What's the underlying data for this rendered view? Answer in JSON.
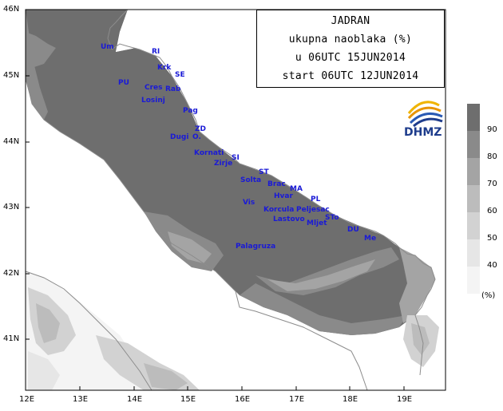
{
  "title": {
    "line1": "JADRAN",
    "line2": "ukupna naoblaka (%)",
    "line3": "u 06UTC 15JUN2014",
    "line4": "start 06UTC 12JUN2014"
  },
  "logo": {
    "text": "DHMZ"
  },
  "axes": {
    "lon_labels": [
      "12E",
      "13E",
      "14E",
      "15E",
      "16E",
      "17E",
      "18E",
      "19E"
    ],
    "lat_labels": [
      "46N",
      "45N",
      "44N",
      "43N",
      "42N",
      "41N"
    ]
  },
  "legend": {
    "levels": [
      "90",
      "80",
      "70",
      "60",
      "50",
      "40"
    ],
    "unit": "(%)",
    "colors": [
      "#6e6e6e",
      "#8a8a8a",
      "#a4a4a4",
      "#bcbcbc",
      "#d2d2d2",
      "#e6e6e6",
      "#f4f4f4"
    ]
  },
  "places": [
    {
      "id": "um",
      "text": "Um"
    },
    {
      "id": "ri",
      "text": "RI"
    },
    {
      "id": "krk",
      "text": "Krk"
    },
    {
      "id": "se",
      "text": "SE"
    },
    {
      "id": "pu",
      "text": "PU"
    },
    {
      "id": "cres",
      "text": "Cres"
    },
    {
      "id": "rab",
      "text": "Rab"
    },
    {
      "id": "losinj",
      "text": "Losinj"
    },
    {
      "id": "pag",
      "text": "Pag"
    },
    {
      "id": "zd",
      "text": "ZD"
    },
    {
      "id": "dugi",
      "text": "Dugi"
    },
    {
      "id": "o",
      "text": "O."
    },
    {
      "id": "kornati",
      "text": "Kornati"
    },
    {
      "id": "si",
      "text": "SI"
    },
    {
      "id": "zirje",
      "text": "Zirje"
    },
    {
      "id": "st",
      "text": "ST"
    },
    {
      "id": "solta",
      "text": "Solta"
    },
    {
      "id": "brac",
      "text": "Brac"
    },
    {
      "id": "ma",
      "text": "MA"
    },
    {
      "id": "hvar",
      "text": "Hvar"
    },
    {
      "id": "pl",
      "text": "PL"
    },
    {
      "id": "vis",
      "text": "Vis"
    },
    {
      "id": "korcula",
      "text": "Korcula"
    },
    {
      "id": "peljesac",
      "text": "Peljesac"
    },
    {
      "id": "lastovo",
      "text": "Lastovo"
    },
    {
      "id": "mljet",
      "text": "Mljet"
    },
    {
      "id": "sto",
      "text": "STo"
    },
    {
      "id": "du",
      "text": "DU"
    },
    {
      "id": "me",
      "text": "Me"
    },
    {
      "id": "palagruza",
      "text": "Palagruza"
    }
  ]
}
